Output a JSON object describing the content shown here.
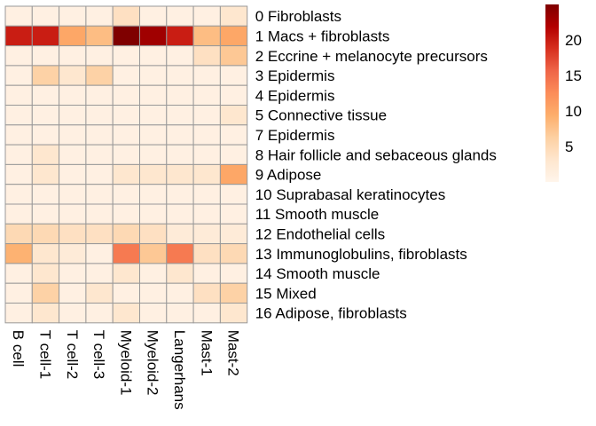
{
  "chart_data": {
    "type": "heatmap",
    "title": "",
    "xlabel": "",
    "ylabel": "",
    "columns": [
      "B cell",
      "T cell-1",
      "T cell-2",
      "T cell-3",
      "Myeloid-1",
      "Myeloid-2",
      "Langerhans",
      "Mast-1",
      "Mast-2"
    ],
    "rows": [
      "0 Fibroblasts",
      "1 Macs + fibroblasts",
      "2 Eccrine + melanocyte precursors",
      "3 Epidermis",
      "4 Epidermis",
      "5 Connective tissue",
      "7 Epidermis",
      "8 Hair follicle and sebaceous glands",
      "9 Adipose",
      "10 Suprabasal keratinocytes",
      "11 Smooth muscle",
      "12 Endothelial cells",
      "13 Immunoglobulins, fibroblasts",
      "14 Smooth muscle",
      "15 Mixed",
      "16 Adipose, fibroblasts"
    ],
    "values": [
      [
        1,
        1,
        1,
        1,
        4,
        1,
        1,
        1,
        3
      ],
      [
        20,
        20,
        10,
        8,
        25,
        23,
        20,
        8,
        10
      ],
      [
        1,
        1,
        1,
        1,
        1,
        1,
        1,
        4,
        7
      ],
      [
        1,
        6,
        3,
        6,
        1,
        1,
        1,
        1,
        1
      ],
      [
        1,
        1,
        1,
        1,
        1,
        1,
        1,
        1,
        1
      ],
      [
        1,
        1,
        1,
        1,
        1,
        1,
        1,
        1,
        3
      ],
      [
        1,
        1,
        1,
        1,
        1,
        1,
        1,
        1,
        1
      ],
      [
        1,
        3,
        1,
        1,
        1,
        1,
        1,
        1,
        1
      ],
      [
        1,
        3,
        1,
        1,
        3,
        3,
        3,
        3,
        10
      ],
      [
        1,
        1,
        1,
        1,
        1,
        1,
        1,
        1,
        1
      ],
      [
        1,
        1,
        1,
        1,
        1,
        1,
        1,
        1,
        1
      ],
      [
        5,
        5,
        4,
        4,
        5,
        4,
        2,
        2,
        2
      ],
      [
        9,
        3,
        2,
        1,
        14,
        7,
        14,
        4,
        5
      ],
      [
        1,
        3,
        1,
        1,
        3,
        1,
        3,
        1,
        1
      ],
      [
        1,
        6,
        1,
        3,
        1,
        1,
        1,
        4,
        6
      ],
      [
        1,
        3,
        1,
        1,
        3,
        1,
        1,
        1,
        3
      ]
    ],
    "color_scale": {
      "min": 0,
      "max": 25,
      "ticks": [
        5,
        10,
        15,
        20
      ],
      "colors": [
        "#fff5eb",
        "#fee6ce",
        "#fdd0a2",
        "#fdae6b",
        "#fc8d59",
        "#ef6548",
        "#d7301f",
        "#b30000",
        "#7f0000"
      ]
    },
    "legend_position": "top-right",
    "cell_border_color": "#999999"
  }
}
